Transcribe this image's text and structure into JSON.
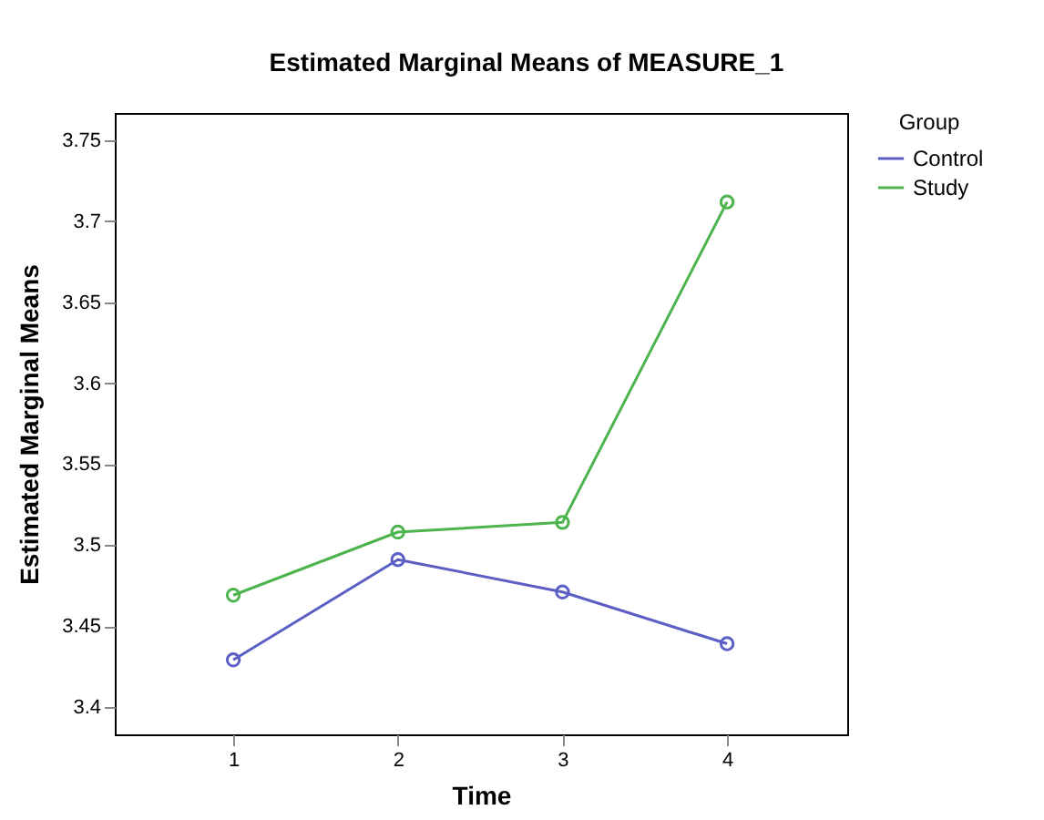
{
  "chart_data": {
    "type": "line",
    "title": "Estimated Marginal Means of MEASURE_1",
    "xlabel": "Time",
    "ylabel": "Estimated Marginal Means",
    "legend_title": "Group",
    "categories": [
      "1",
      "2",
      "3",
      "4"
    ],
    "series": [
      {
        "name": "Control",
        "color": "#5b5fc4",
        "values": [
          3.429,
          3.491,
          3.471,
          3.439
        ]
      },
      {
        "name": "Study",
        "color": "#4db44d",
        "values": [
          3.469,
          3.508,
          3.514,
          3.712
        ]
      }
    ],
    "ylim": [
      3.383,
      3.767
    ],
    "yticks": [
      3.4,
      3.45,
      3.5,
      3.55,
      3.6,
      3.65,
      3.7,
      3.75
    ],
    "marker": "circle",
    "line_style": "solid",
    "legend": "top right"
  }
}
